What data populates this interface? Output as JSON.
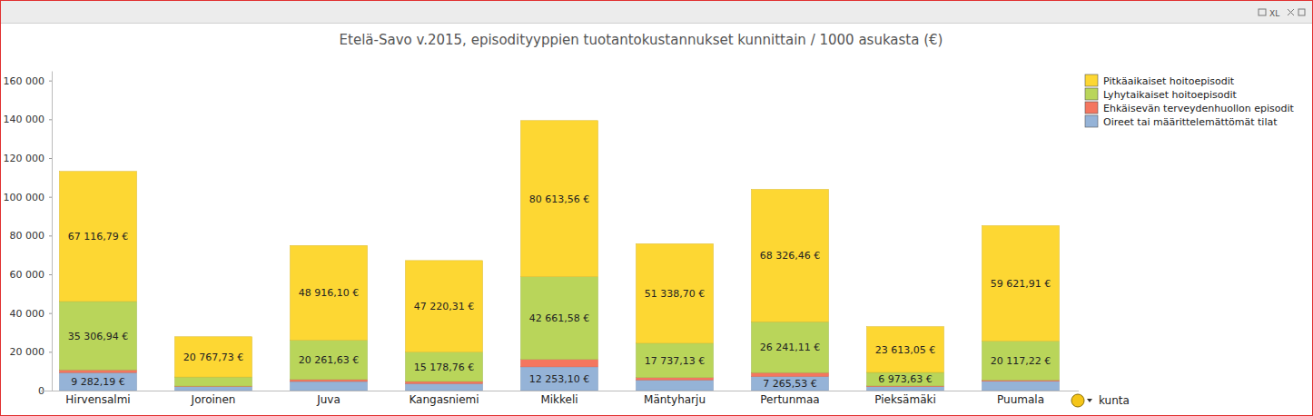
{
  "chart_data": {
    "type": "bar",
    "title": "Etelä-Savo v.2015, episodityyppien tuotantokustannukset kunnittain / 1000 asukasta (€)",
    "xlabel": "kunta",
    "annotations": [
      "XL"
    ],
    "categories": [
      "Hirvensalmi",
      "Joroinen",
      "Juva",
      "Kangasniemi",
      "Mikkeli",
      "Mäntyharju",
      "Pertunmaa",
      "Pieksämäki",
      "Puumala"
    ],
    "series": [
      {
        "name": "Oireet tai määrittelemättömät tilat",
        "color": "#95b3d7",
        "values": [
          9282.19,
          2000,
          4700,
          3600,
          12253.1,
          5500,
          7265.53,
          2000,
          4800
        ],
        "value_labels": [
          "9 282,19 €",
          null,
          null,
          null,
          "12 253,10 €",
          null,
          "7 265,53 €",
          null,
          null
        ]
      },
      {
        "name": "Ehkäisevän terveydenhuollon episodit",
        "color": "#f4765f",
        "values": [
          1400,
          300,
          1000,
          1100,
          3800,
          1200,
          2000,
          400,
          600
        ],
        "value_labels": [
          null,
          null,
          null,
          null,
          null,
          null,
          null,
          null,
          null
        ]
      },
      {
        "name": "Lyhytaikaiset hoitoepisodit",
        "color": "#b9d55a",
        "values": [
          35306.94,
          4700,
          20261.63,
          15178.76,
          42661.58,
          17737.13,
          26241.11,
          6973.63,
          20117.22
        ],
        "value_labels": [
          "35 306,94 €",
          null,
          "20 261,63 €",
          "15 178,76 €",
          "42 661,58 €",
          "17 737,13 €",
          "26 241,11 €",
          "6 973,63 €",
          "20 117,22 €"
        ]
      },
      {
        "name": "Pitkäaikaiset hoitoepisodit",
        "color": "#fdd733",
        "values": [
          67116.79,
          20767.73,
          48916.1,
          47220.31,
          80613.56,
          51338.7,
          68326.46,
          23613.05,
          59621.91
        ],
        "value_labels": [
          "67 116,79 €",
          "20 767,73 €",
          "48 916,10 €",
          "47 220,31 €",
          "80 613,56 €",
          "51 338,70 €",
          "68 326,46 €",
          "23 613,05 €",
          "59 621,91 €"
        ]
      }
    ],
    "stacked": true,
    "data_labels": true,
    "grid": false,
    "legend": "top-right",
    "ylim": [
      0,
      165000
    ],
    "yticks": [
      0,
      {
        "value": 20000,
        "label": "20 000"
      },
      {
        "value": 40000,
        "label": "40 000"
      },
      {
        "value": 60000,
        "label": "60 000"
      },
      {
        "value": 80000,
        "label": "80 000"
      },
      {
        "value": 100000,
        "label": "100 000"
      },
      {
        "value": 120000,
        "label": "120 000"
      },
      {
        "value": 140000,
        "label": "140 000"
      },
      {
        "value": 160000,
        "label": "160 000"
      }
    ]
  }
}
